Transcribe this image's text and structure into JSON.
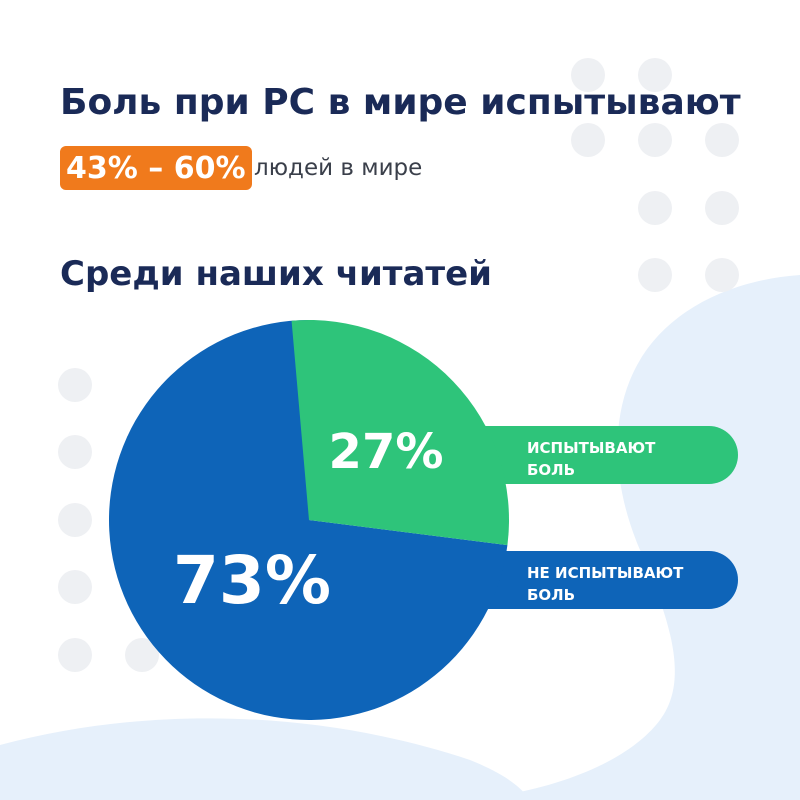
{
  "header": {
    "title": "Боль при РС в мире испытывают",
    "range_badge": "43% – 60%",
    "range_text": "людей в мире",
    "subtitle": "Среди наших читатей"
  },
  "colors": {
    "title": "#1a2a57",
    "badge": "#f07a1c",
    "blue": "#0e64b8",
    "green": "#2ec47a",
    "dots": "#eef0f3",
    "blob": "#e6f0fb"
  },
  "chart_data": {
    "type": "pie",
    "title": "Среди наших читатей",
    "slices": [
      {
        "label": "НЕ ИСПЫТЫВАЮТ БОЛЬ",
        "label_lines": [
          "НЕ ИСПЫТЫВАЮТ",
          "БОЛЬ"
        ],
        "value": 73,
        "display": "73%",
        "color": "#0e64b8"
      },
      {
        "label": "ИСПЫТЫВАЮТ БОЛЬ",
        "label_lines": [
          "ИСПЫТЫВАЮТ",
          "БОЛЬ"
        ],
        "value": 27,
        "display": "27%",
        "color": "#2ec47a"
      }
    ]
  }
}
